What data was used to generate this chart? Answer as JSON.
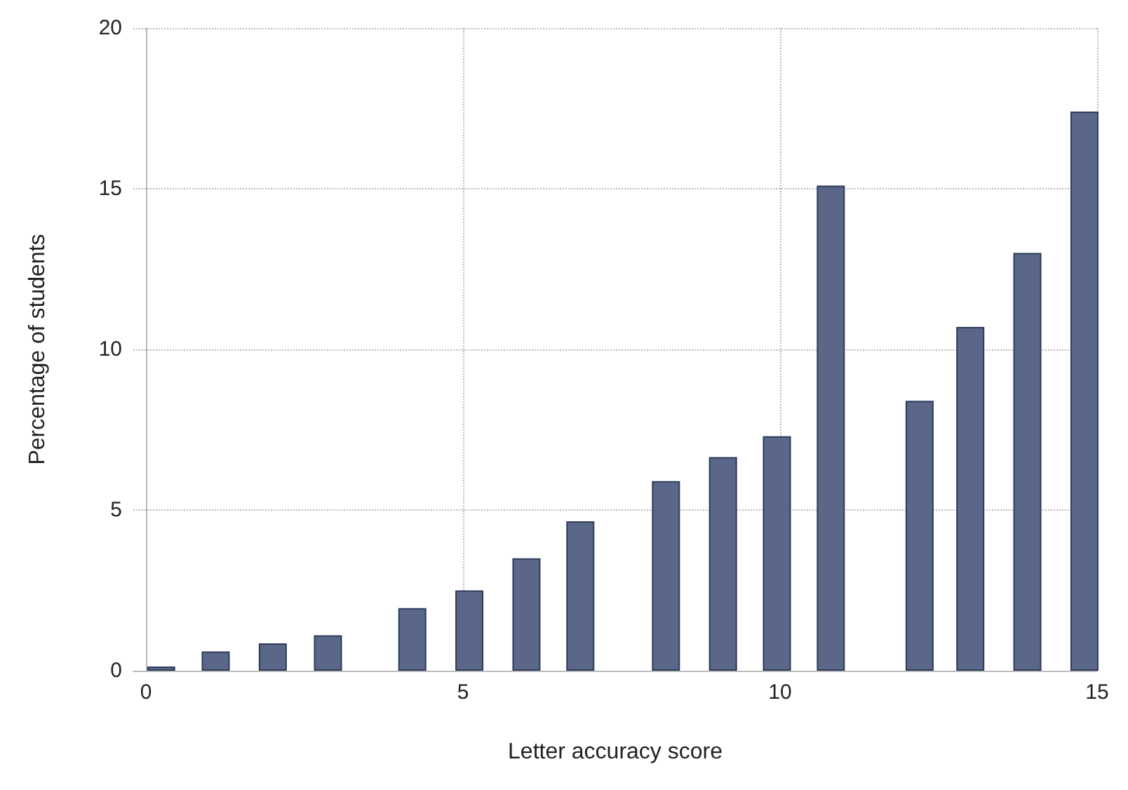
{
  "chart_data": {
    "type": "bar",
    "xlabel": "Letter accuracy score",
    "ylabel": "Percentage of students",
    "x": [
      0.24,
      1.1,
      2.0,
      2.87,
      4.2,
      5.1,
      6.0,
      6.85,
      8.2,
      9.1,
      9.95,
      10.8,
      12.2,
      13.0,
      13.9,
      14.8
    ],
    "series": [
      {
        "color": "#5a6788",
        "values": [
          0.13,
          0.6,
          0.85,
          1.1,
          1.95,
          2.5,
          3.5,
          4.65,
          5.9,
          6.65,
          7.3,
          15.1,
          8.4,
          10.7,
          13.0,
          17.4
        ]
      }
    ],
    "xlim": [
      -0.2,
      15
    ],
    "xticks": [
      0,
      5,
      10,
      15
    ],
    "ylim": [
      0,
      20
    ],
    "yticks": [
      0,
      5,
      10,
      15,
      20
    ],
    "grid": true
  }
}
